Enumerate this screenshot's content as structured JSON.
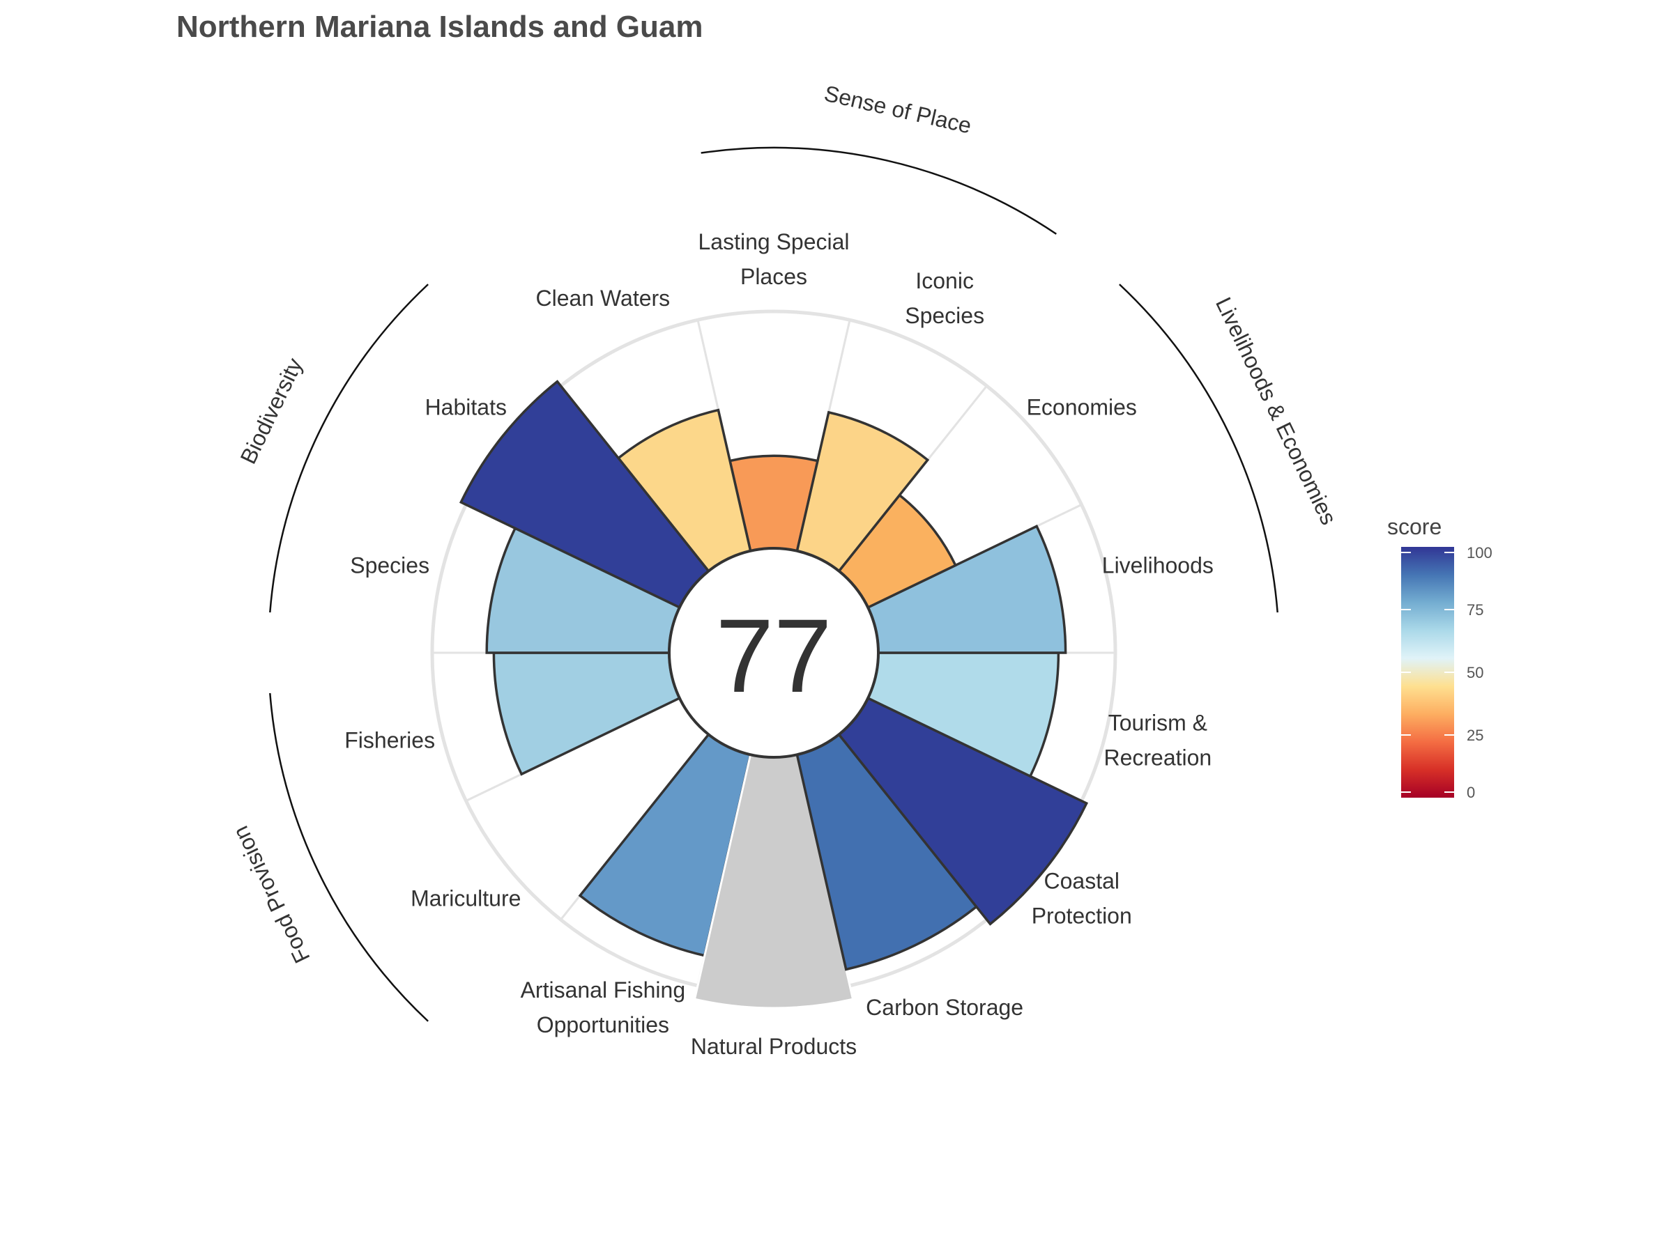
{
  "chart_data": {
    "type": "flower",
    "title": "Northern Mariana Islands and Guam",
    "center_score": "77",
    "score_range": [
      0,
      100
    ],
    "petals": [
      {
        "label": [
          "Fisheries"
        ],
        "value": 74,
        "color": "#a1cfe3"
      },
      {
        "label": [
          "Mariculture"
        ],
        "value": 0,
        "color": null
      },
      {
        "label": [
          "Artisanal Fishing",
          "Opportunities"
        ],
        "value": 87,
        "color": "#6499c8"
      },
      {
        "label": [
          "Natural Products"
        ],
        "value": null,
        "color": "#cccccc"
      },
      {
        "label": [
          "Carbon Storage"
        ],
        "value": 93,
        "color": "#4270b0"
      },
      {
        "label": [
          "Coastal",
          "Protection"
        ],
        "value": 100,
        "color": "#313f98"
      },
      {
        "label": [
          "Tourism &",
          "Recreation"
        ],
        "value": 76,
        "color": "#b0dbea"
      },
      {
        "label": [
          "Livelihoods"
        ],
        "value": 79,
        "color": "#8fc1dd"
      },
      {
        "label": [
          "Economies"
        ],
        "value": 41,
        "color": "#fab15f"
      },
      {
        "label": [
          "Iconic",
          "Species"
        ],
        "value": 60,
        "color": "#fcd488"
      },
      {
        "label": [
          "Lasting Special",
          "Places"
        ],
        "value": 39,
        "color": "#f89a57"
      },
      {
        "label": [
          "Clean Waters"
        ],
        "value": 61,
        "color": "#fcd78a"
      },
      {
        "label": [
          "Habitats"
        ],
        "value": 100,
        "color": "#313f98"
      },
      {
        "label": [
          "Species"
        ],
        "value": 77,
        "color": "#98c7df"
      }
    ],
    "groups": [
      {
        "name": "Food Provision",
        "petals": [
          "Fisheries",
          "Mariculture"
        ]
      },
      {
        "name": "Biodiversity",
        "petals": [
          "Species",
          "Habitats"
        ]
      },
      {
        "name": "Sense of Place",
        "petals": [
          "Iconic Species",
          "Lasting Special Places"
        ]
      },
      {
        "name": "Livelihoods & Economies",
        "petals": [
          "Livelihoods",
          "Economies"
        ]
      }
    ],
    "colorbar": {
      "title": "score",
      "ticks": [
        "100",
        "75",
        "50",
        "25",
        "0"
      ],
      "stops": [
        "#a50026",
        "#d73027",
        "#f46d43",
        "#fdae61",
        "#fee090",
        "#e0f3f8",
        "#abd9e9",
        "#74add1",
        "#4575b4",
        "#313695"
      ]
    }
  }
}
